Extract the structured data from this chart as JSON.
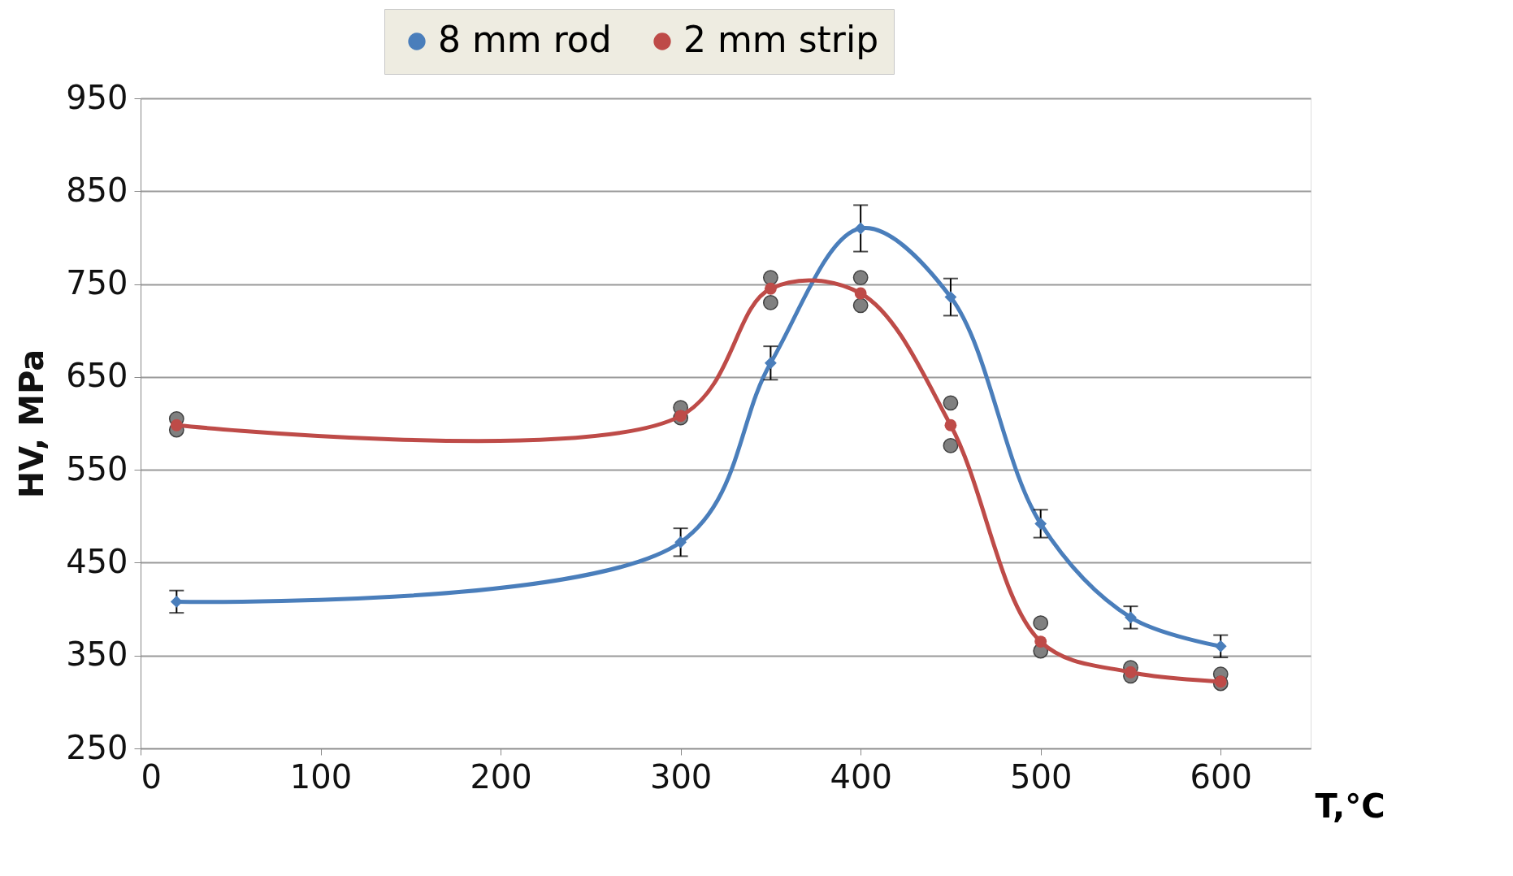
{
  "chart_data": {
    "type": "line",
    "xlabel": "T,°C",
    "ylabel": "HV, MPa",
    "x": [
      20,
      300,
      350,
      400,
      450,
      500,
      550,
      600
    ],
    "xlim": [
      0,
      650
    ],
    "xticks": [
      0,
      100,
      200,
      300,
      400,
      500,
      600
    ],
    "ylim": [
      250,
      950
    ],
    "yticks": [
      250,
      350,
      450,
      550,
      650,
      750,
      850,
      950
    ],
    "grid": "y",
    "legend": "top",
    "line_style": "solid",
    "series": [
      {
        "name": "8 mm rod",
        "color": "#4a7ebb",
        "marker": "diamond",
        "values": [
          408,
          472,
          665,
          810,
          736,
          492,
          391,
          360
        ],
        "errors": [
          12,
          15,
          18,
          25,
          20,
          15,
          12,
          12
        ]
      },
      {
        "name": "2 mm strip",
        "color": "#be4b48",
        "marker": "circle",
        "values": [
          598,
          608,
          745,
          740,
          598,
          365,
          332,
          322
        ]
      },
      {
        "color": "#808080",
        "type": "scatter",
        "marker": "circle",
        "x": [
          20,
          20,
          300,
          300,
          350,
          350,
          400,
          400,
          450,
          450,
          500,
          500,
          550,
          550,
          600,
          600
        ],
        "values": [
          605,
          593,
          617,
          606,
          757,
          730,
          757,
          727,
          622,
          576,
          385,
          355,
          337,
          328,
          330,
          320
        ]
      }
    ]
  }
}
